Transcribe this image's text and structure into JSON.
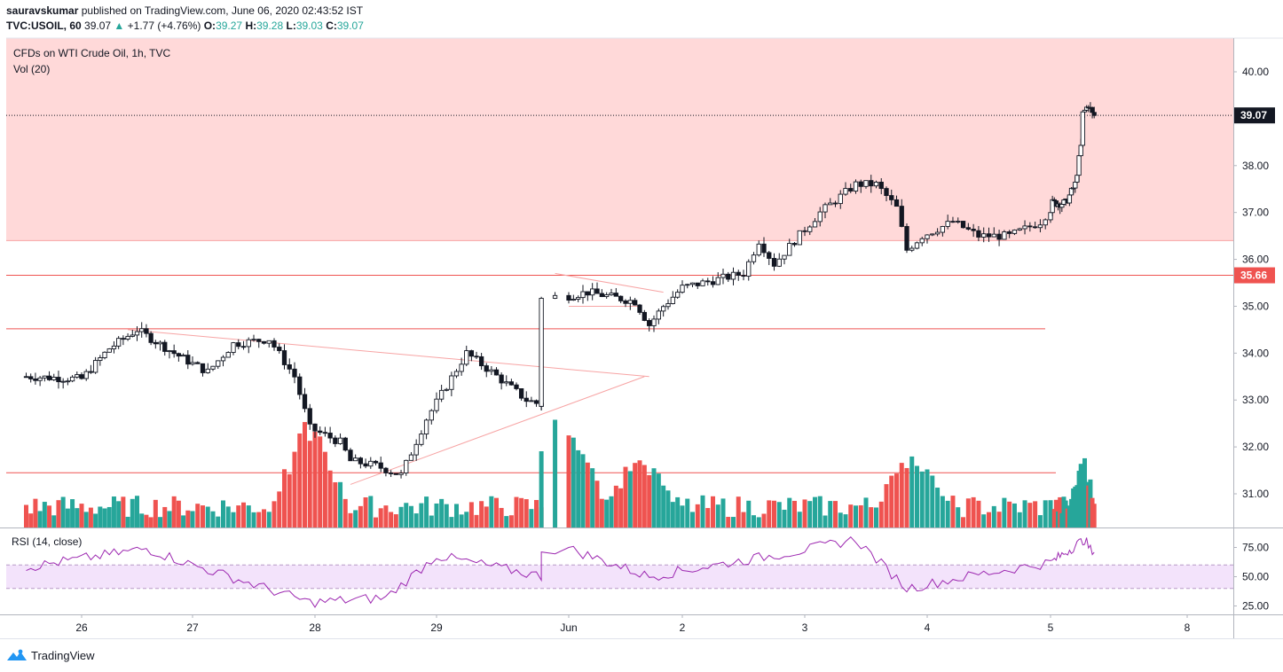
{
  "header": {
    "publisher": "sauravskumar",
    "published_text": "published on TradingView.com, June 06, 2020 02:43:52 IST",
    "symbol": "TVC:USOIL, 60",
    "last": "39.07",
    "change_arrow": "▲",
    "change": "+1.77 (+4.76%)",
    "o_label": "O:",
    "o_value": "39.27",
    "h_label": "H:",
    "h_value": "39.28",
    "l_label": "L:",
    "l_value": "39.03",
    "c_label": "C:",
    "c_value": "39.07"
  },
  "main_pane": {
    "title": "CFDs on WTI Crude Oil, 1h, TVC",
    "volume_label": "Vol (20)",
    "last_price_label": "39.07",
    "level_price_label": "35.66"
  },
  "rsi_pane": {
    "label": "RSI (14, close)"
  },
  "footer": {
    "brand": "TradingView"
  },
  "colors": {
    "up": "#26a69a",
    "down": "#ef5350",
    "resistance_zone": "#ffd9d9",
    "level_line": "#ef5350",
    "rsi_line": "#9c27b0",
    "rsi_band": "#f3e3fb"
  },
  "chart_data": [
    {
      "type": "candlestick",
      "title": "CFDs on WTI Crude Oil, 1h, TVC",
      "x_tick_labels": [
        "26",
        "27",
        "28",
        "29",
        "Jun",
        "2",
        "3",
        "4",
        "5",
        "8"
      ],
      "y_tick_labels": [
        "31.00",
        "32.00",
        "33.00",
        "34.00",
        "35.00",
        "36.00",
        "37.00",
        "38.00",
        "39.00",
        "40.00"
      ],
      "ylim": [
        30.3,
        40.7
      ],
      "last_price": 39.07,
      "level": 35.66,
      "resistance_zone": [
        36.4,
        41.0
      ],
      "horizontal_lines": [
        35.66,
        34.52,
        31.45
      ],
      "trendlines": [
        {
          "from": [
            "May 26 10:00",
            34.5
          ],
          "to": [
            "Jun 1 17:00",
            33.5
          ]
        },
        {
          "from": [
            "May 28 07:00",
            31.2
          ],
          "to": [
            "Jun 1 16:00",
            33.5
          ]
        },
        {
          "from": [
            "May 31 23:00",
            35.7
          ],
          "to": [
            "Jun 1 20:00",
            35.3
          ]
        },
        {
          "from": [
            "Jun 1 00:00",
            35.0
          ],
          "to": [
            "Jun 1 15:00",
            35.0
          ]
        }
      ],
      "keypoints": [
        {
          "x": "May 25 12:00",
          "close": 33.5
        },
        {
          "x": "May 26 00:00",
          "close": 33.45
        },
        {
          "x": "May 26 06:00",
          "close": 34.1
        },
        {
          "x": "May 26 12:00",
          "close": 34.5
        },
        {
          "x": "May 26 20:00",
          "close": 34.0
        },
        {
          "x": "May 27 03:00",
          "close": 33.6
        },
        {
          "x": "May 27 08:00",
          "close": 34.2
        },
        {
          "x": "May 27 15:00",
          "close": 34.3
        },
        {
          "x": "May 27 20:00",
          "close": 33.5
        },
        {
          "x": "May 27 23:00",
          "close": 32.4
        },
        {
          "x": "May 28 05:00",
          "close": 32.1
        },
        {
          "x": "May 28 07:00",
          "close": 31.7
        },
        {
          "x": "May 28 12:00",
          "close": 31.6
        },
        {
          "x": "May 28 17:00",
          "close": 31.4
        },
        {
          "x": "May 28 22:00",
          "close": 32.6
        },
        {
          "x": "May 29 06:00",
          "close": 34.0
        },
        {
          "x": "May 29 11:00",
          "close": 33.6
        },
        {
          "x": "May 29 18:00",
          "close": 33.0
        },
        {
          "x": "May 30 00:00",
          "close": 32.8
        },
        {
          "x": "May 30 05:00",
          "close": 33.4
        },
        {
          "x": "May 31 23:00",
          "close": 35.2
        },
        {
          "x": "Jun 1 04:00",
          "close": 35.3
        },
        {
          "x": "Jun 1 14:00",
          "close": 35.1
        },
        {
          "x": "Jun 1 17:00",
          "close": 34.6
        },
        {
          "x": "Jun 1 20:00",
          "close": 35.0
        },
        {
          "x": "Jun 2 00:00",
          "close": 35.4
        },
        {
          "x": "Jun 2 12:00",
          "close": 35.7
        },
        {
          "x": "Jun 2 15:00",
          "close": 36.4
        },
        {
          "x": "Jun 2 18:00",
          "close": 35.9
        },
        {
          "x": "Jun 2 22:00",
          "close": 36.4
        },
        {
          "x": "Jun 3 03:00",
          "close": 37.0
        },
        {
          "x": "Jun 3 10:00",
          "close": 37.6
        },
        {
          "x": "Jun 3 14:00",
          "close": 37.6
        },
        {
          "x": "Jun 3 18:00",
          "close": 37.1
        },
        {
          "x": "Jun 3 20:00",
          "close": 36.2
        },
        {
          "x": "Jun 3 23:00",
          "close": 36.5
        },
        {
          "x": "Jun 4 05:00",
          "close": 36.8
        },
        {
          "x": "Jun 4 10:00",
          "close": 36.5
        },
        {
          "x": "Jun 4 16:00",
          "close": 36.5
        },
        {
          "x": "Jun 4 22:00",
          "close": 36.8
        },
        {
          "x": "Jun 5 01:00",
          "close": 37.2
        },
        {
          "x": "Jun 5 08:00",
          "close": 37.2
        },
        {
          "x": "Jun 5 13:00",
          "close": 37.6
        },
        {
          "x": "Jun 5 16:00",
          "close": 38.4
        },
        {
          "x": "Jun 5 17:00",
          "close": 39.1
        },
        {
          "x": "Jun 5 20:00",
          "close": 39.3
        },
        {
          "x": "Jun 5 22:00",
          "close": 39.1
        },
        {
          "x": "Jun 5 23:00",
          "close": 39.07
        }
      ],
      "volume": {
        "label": "Vol (20)",
        "peaks": [
          {
            "x": "May 27 23:00",
            "relative": 0.95
          },
          {
            "x": "Jun 1 00:00",
            "relative": 1.0
          },
          {
            "x": "Jun 1 15:00",
            "relative": 0.75
          },
          {
            "x": "Jun 3 21:00",
            "relative": 0.74
          },
          {
            "x": "Jun 5 17:00",
            "relative": 0.65
          }
        ]
      }
    },
    {
      "type": "line",
      "series": [
        {
          "name": "RSI (14, close)"
        }
      ],
      "y_tick_labels": [
        "25.00",
        "50.00",
        "75.00"
      ],
      "ylim": [
        20,
        85
      ],
      "band": [
        40,
        60
      ],
      "x": [
        "May 25 12:00",
        "May 26 14:00",
        "May 27 23:00",
        "May 28 14:00",
        "May 29 00:00",
        "May 30 00:00",
        "Jun 1 00:00",
        "Jun 1 17:00",
        "Jun 2 23:00",
        "Jun 3 10:00",
        "Jun 3 20:00",
        "Jun 4 10:00",
        "Jun 5 00:00",
        "Jun 5 18:00",
        "Jun 5 23:00"
      ],
      "values": [
        58,
        74,
        28,
        32,
        68,
        48,
        74,
        50,
        72,
        82,
        40,
        52,
        62,
        82,
        67
      ]
    }
  ]
}
